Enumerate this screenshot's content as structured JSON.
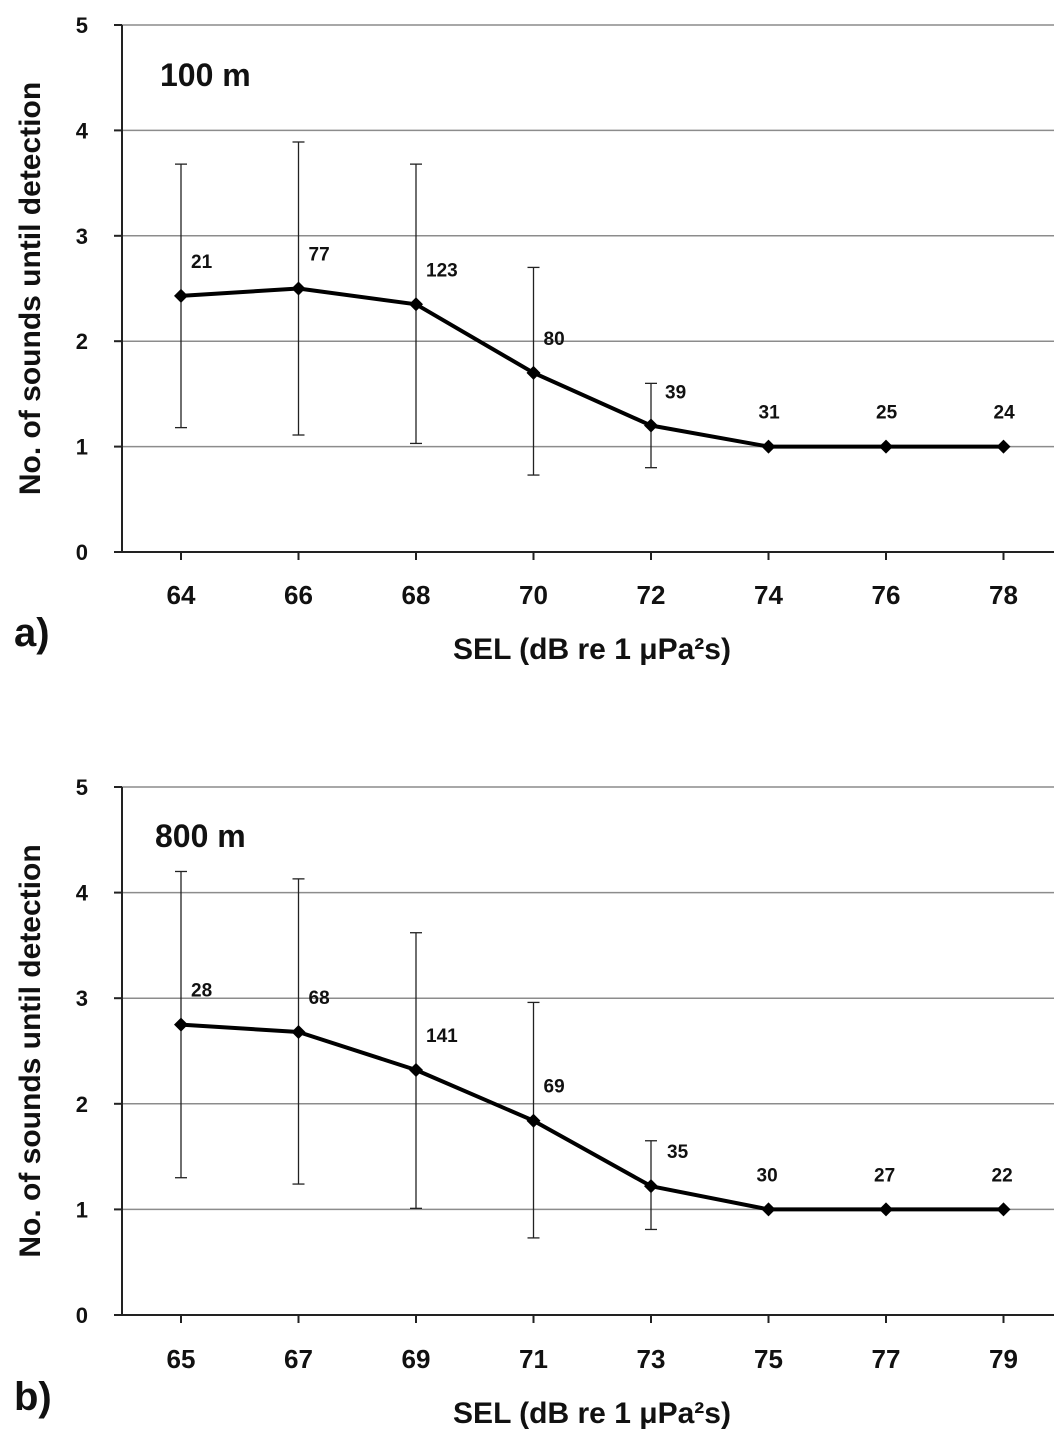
{
  "chart_data": [
    {
      "type": "line",
      "panel_label": "a)",
      "annotation": "100 m",
      "x": [
        64,
        66,
        68,
        70,
        72,
        74,
        76,
        78
      ],
      "y": [
        2.43,
        2.5,
        2.35,
        1.7,
        1.2,
        1.0,
        1.0,
        1.0
      ],
      "error_low": [
        1.18,
        1.11,
        1.03,
        0.73,
        0.8,
        null,
        null,
        null
      ],
      "error_high": [
        3.68,
        3.89,
        3.68,
        2.7,
        1.6,
        null,
        null,
        null
      ],
      "data_labels": [
        "21",
        "77",
        "123",
        "80",
        "39",
        "31",
        "25",
        "24"
      ],
      "xlabel": "SEL (dB re 1 μPa²s)",
      "ylabel": "No. of sounds until detection",
      "ylim": [
        0,
        5
      ],
      "yticks": [
        "0",
        "1",
        "2",
        "3",
        "4",
        "5"
      ],
      "xticks": [
        "64",
        "66",
        "68",
        "70",
        "72",
        "74",
        "76",
        "78"
      ],
      "grid": "horizontal"
    },
    {
      "type": "line",
      "panel_label": "b)",
      "annotation": "800 m",
      "x": [
        65,
        67,
        69,
        71,
        73,
        75,
        77,
        79
      ],
      "y": [
        2.75,
        2.68,
        2.32,
        1.84,
        1.22,
        1.0,
        1.0,
        1.0
      ],
      "error_low": [
        1.3,
        1.24,
        1.01,
        0.73,
        0.81,
        null,
        null,
        null
      ],
      "error_high": [
        4.2,
        4.13,
        3.62,
        2.96,
        1.65,
        null,
        null,
        null
      ],
      "data_labels": [
        "28",
        "68",
        "141",
        "69",
        "35",
        "30",
        "27",
        "22"
      ],
      "xlabel": "SEL (dB re 1 μPa²s)",
      "ylabel": "No. of sounds until detection",
      "ylim": [
        0,
        5
      ],
      "yticks": [
        "0",
        "1",
        "2",
        "3",
        "4",
        "5"
      ],
      "xticks": [
        "65",
        "67",
        "69",
        "71",
        "73",
        "75",
        "77",
        "79"
      ],
      "grid": "horizontal"
    }
  ]
}
